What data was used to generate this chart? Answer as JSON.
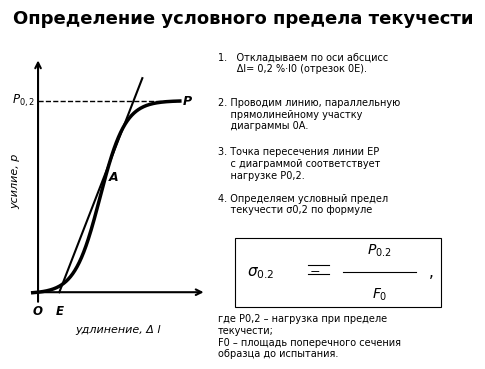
{
  "title": "Определение условного предела текучести",
  "background_color": "#ffffff",
  "text_color": "#000000",
  "step1": "1.   Откладываем по оси абсцисс\n      Δl= 0,2 %·l0 (отрезок 0E).",
  "step2": "2. Проводим линию, параллельную\n    прямолинейному участку\n    диаграммы 0А.",
  "step3": "3. Точка пересечения линии ЕР\n    с диаграммой соответствует\n    нагрузке Р0,2.",
  "step4": "4. Определяем условный предел\n    текучести σ0,2 по формуле",
  "where_text": "где Р0,2 – нагрузка при пределе\nтекучести;\nF0 – площадь поперечного сечения\nобразца до испытания.",
  "ylabel": "усилие, р",
  "xlabel": "удлинение, Δ l",
  "point_A": "A",
  "point_P": "P",
  "point_O": "O",
  "point_E": "E",
  "curve_color": "#000000",
  "line_lw": 2.0,
  "ep_lw": 1.5
}
